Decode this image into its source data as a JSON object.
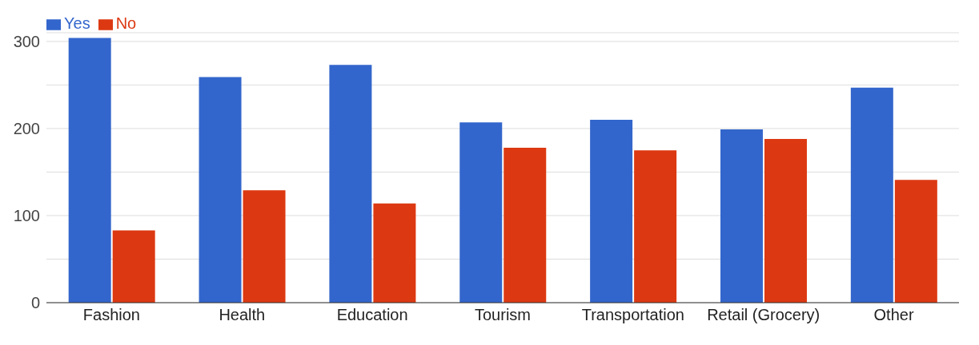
{
  "chart_data": {
    "type": "bar",
    "categories": [
      "Fashion",
      "Health",
      "Education",
      "Tourism",
      "Transportation",
      "Retail (Grocery)",
      "Other"
    ],
    "series": [
      {
        "name": "Yes",
        "color": "#3366cc",
        "values": [
          304,
          259,
          273,
          207,
          210,
          199,
          247
        ]
      },
      {
        "name": "No",
        "color": "#dc3912",
        "values": [
          83,
          129,
          114,
          178,
          175,
          188,
          141
        ]
      }
    ],
    "ylim": [
      0,
      310
    ],
    "yticks": [
      0,
      {
        "value": 50,
        "label": null
      },
      100,
      {
        "value": 150,
        "label": null
      },
      200,
      {
        "value": 250,
        "label": null
      },
      300
    ],
    "grid": "y",
    "legend": "top left"
  }
}
